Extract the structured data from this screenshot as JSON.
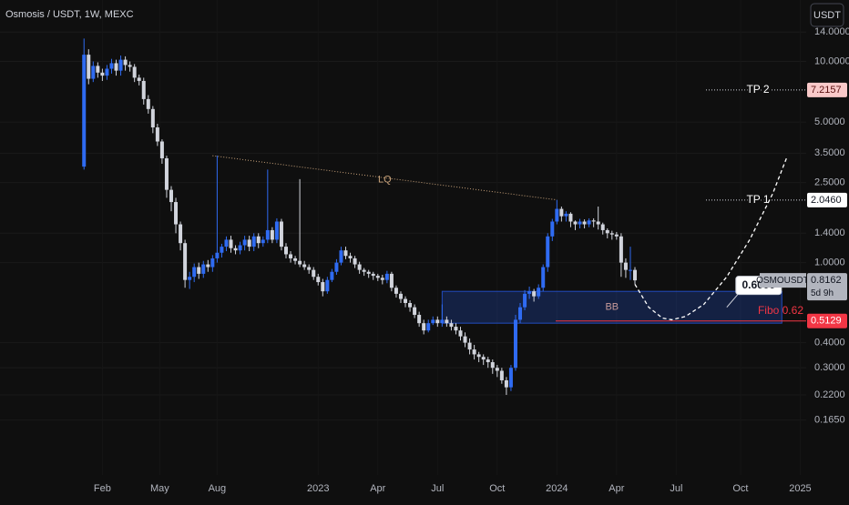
{
  "chart_data": {
    "type": "candlestick",
    "title": "Osmosis / USDT, 1W, MEXC",
    "currency_button": "USDT",
    "log_scale": true,
    "grid": true,
    "background": "#0f0f0f",
    "up_color": "#2f6bf2",
    "down_color": "#d1d4dc",
    "ylim": [
      0.088,
      20.2
    ],
    "xlim": [
      -18.3,
      157.3
    ],
    "yticks": [
      {
        "value": 14,
        "label": "14.0000"
      },
      {
        "value": 10,
        "label": "10.0000"
      },
      {
        "value": 5,
        "label": "5.0000"
      },
      {
        "value": 3.5,
        "label": "3.5000"
      },
      {
        "value": 2.5,
        "label": "2.5000"
      },
      {
        "value": 1.4,
        "label": "1.4000"
      },
      {
        "value": 1,
        "label": "1.0000"
      },
      {
        "value": 0.4,
        "label": "0.4000"
      },
      {
        "value": 0.3,
        "label": "0.3000"
      },
      {
        "value": 0.22,
        "label": "0.2200"
      },
      {
        "value": 0.165,
        "label": "0.1650"
      }
    ],
    "xticks": [
      {
        "value": 4,
        "label": "Feb"
      },
      {
        "value": 16.5,
        "label": "May"
      },
      {
        "value": 29,
        "label": "Aug"
      },
      {
        "value": 51,
        "label": "2023"
      },
      {
        "value": 64,
        "label": "Apr"
      },
      {
        "value": 77,
        "label": "Jul"
      },
      {
        "value": 90,
        "label": "Oct"
      },
      {
        "value": 103,
        "label": "2024"
      },
      {
        "value": 116,
        "label": "Apr"
      },
      {
        "value": 129,
        "label": "Jul"
      },
      {
        "value": 143,
        "label": "Oct"
      },
      {
        "value": 156,
        "label": "2025"
      }
    ],
    "series": {
      "name": "OSMOUSDT",
      "countdown": "5d 9h",
      "open": [
        3.0,
        10.8,
        8.2,
        9.5,
        8.8,
        8.5,
        9.2,
        9.8,
        9.0,
        10.2,
        9.6,
        9.4,
        8.3,
        8.0,
        6.5,
        5.8,
        4.7,
        4.0,
        3.3,
        2.3,
        2.0,
        1.55,
        1.25,
        0.82,
        0.85,
        0.95,
        0.88,
        0.98,
        0.95,
        1.05,
        1.12,
        1.2,
        1.3,
        1.18,
        1.15,
        1.22,
        1.3,
        1.2,
        1.35,
        1.25,
        1.3,
        1.45,
        1.3,
        1.6,
        1.2,
        1.1,
        1.05,
        1.02,
        0.98,
        0.95,
        0.92,
        0.85,
        0.8,
        0.72,
        0.82,
        0.9,
        1.0,
        1.15,
        1.08,
        1.05,
        0.98,
        0.92,
        0.9,
        0.88,
        0.86,
        0.84,
        0.82,
        0.88,
        0.75,
        0.7,
        0.66,
        0.63,
        0.6,
        0.55,
        0.5,
        0.46,
        0.5,
        0.52,
        0.5,
        0.52,
        0.5,
        0.48,
        0.46,
        0.43,
        0.4,
        0.37,
        0.35,
        0.34,
        0.33,
        0.32,
        0.3,
        0.29,
        0.26,
        0.24,
        0.3,
        0.52,
        0.6,
        0.7,
        0.72,
        0.68,
        0.75,
        0.95,
        1.35,
        1.6,
        1.85,
        1.7,
        1.75,
        1.6,
        1.55,
        1.6,
        1.55,
        1.62,
        1.6,
        1.55,
        1.45,
        1.4,
        1.38,
        1.35,
        1.0,
        0.92,
        0.92
      ],
      "high": [
        13.0,
        11.5,
        10.0,
        9.9,
        9.2,
        9.6,
        10.3,
        10.2,
        10.7,
        10.6,
        10.0,
        9.7,
        8.6,
        8.3,
        6.8,
        6.0,
        4.9,
        4.1,
        3.4,
        2.4,
        2.1,
        1.6,
        1.3,
        0.9,
        0.99,
        1.0,
        1.02,
        1.03,
        1.09,
        3.4,
        1.24,
        1.35,
        1.36,
        1.22,
        1.27,
        1.36,
        1.36,
        1.4,
        1.4,
        1.35,
        2.9,
        1.5,
        1.66,
        1.65,
        1.25,
        1.14,
        1.08,
        2.6,
        1.02,
        0.98,
        0.95,
        0.88,
        0.83,
        0.85,
        0.93,
        1.04,
        1.2,
        1.2,
        1.12,
        1.08,
        1.01,
        0.94,
        0.92,
        0.9,
        0.88,
        0.87,
        0.91,
        0.9,
        0.77,
        0.72,
        0.68,
        0.65,
        0.62,
        0.57,
        0.52,
        0.52,
        0.54,
        0.54,
        0.62,
        0.54,
        0.52,
        0.5,
        0.48,
        0.45,
        0.42,
        0.39,
        0.36,
        0.35,
        0.34,
        0.33,
        0.31,
        0.3,
        0.27,
        0.31,
        0.55,
        0.63,
        0.73,
        0.76,
        0.74,
        0.78,
        0.98,
        1.4,
        1.65,
        2.05,
        1.9,
        1.8,
        1.78,
        1.62,
        1.65,
        1.64,
        1.66,
        1.66,
        1.9,
        1.58,
        1.48,
        1.44,
        1.42,
        1.4,
        1.05,
        1.2,
        0.95
      ],
      "low": [
        2.9,
        7.7,
        7.9,
        8.3,
        8.0,
        8.1,
        8.7,
        8.5,
        8.5,
        9.0,
        8.9,
        7.9,
        7.6,
        6.1,
        5.5,
        4.4,
        3.8,
        3.1,
        2.1,
        1.8,
        1.4,
        1.15,
        0.75,
        0.74,
        0.8,
        0.83,
        0.84,
        0.9,
        0.9,
        1.0,
        1.06,
        1.14,
        1.12,
        1.1,
        1.1,
        1.15,
        1.14,
        1.14,
        1.18,
        1.2,
        1.25,
        1.25,
        1.25,
        1.15,
        1.05,
        1.0,
        0.98,
        0.95,
        0.92,
        0.88,
        0.82,
        0.77,
        0.68,
        0.7,
        0.8,
        0.87,
        0.97,
        1.04,
        1.0,
        0.94,
        0.88,
        0.86,
        0.84,
        0.82,
        0.81,
        0.78,
        0.79,
        0.72,
        0.67,
        0.63,
        0.6,
        0.57,
        0.53,
        0.48,
        0.44,
        0.45,
        0.49,
        0.48,
        0.48,
        0.48,
        0.46,
        0.44,
        0.41,
        0.38,
        0.35,
        0.33,
        0.32,
        0.31,
        0.3,
        0.28,
        0.27,
        0.25,
        0.22,
        0.23,
        0.29,
        0.5,
        0.58,
        0.66,
        0.64,
        0.66,
        0.72,
        0.9,
        1.28,
        1.55,
        1.6,
        1.6,
        1.5,
        1.45,
        1.48,
        1.48,
        1.5,
        1.5,
        1.46,
        1.38,
        1.32,
        1.3,
        1.3,
        0.85,
        0.84,
        0.82,
        0.78
      ],
      "close": [
        10.8,
        8.2,
        9.5,
        8.8,
        8.5,
        9.2,
        9.8,
        9.0,
        10.2,
        9.6,
        9.4,
        8.3,
        8.0,
        6.5,
        5.8,
        4.7,
        4.0,
        3.3,
        2.3,
        2.0,
        1.55,
        1.25,
        0.82,
        0.85,
        0.95,
        0.88,
        0.98,
        0.95,
        1.05,
        1.12,
        1.2,
        1.3,
        1.18,
        1.15,
        1.22,
        1.3,
        1.2,
        1.35,
        1.25,
        1.3,
        1.45,
        1.3,
        1.6,
        1.2,
        1.1,
        1.05,
        1.02,
        0.98,
        0.95,
        0.92,
        0.85,
        0.8,
        0.72,
        0.82,
        0.9,
        1.0,
        1.15,
        1.08,
        1.05,
        0.98,
        0.92,
        0.9,
        0.88,
        0.86,
        0.84,
        0.82,
        0.88,
        0.75,
        0.7,
        0.66,
        0.63,
        0.6,
        0.55,
        0.5,
        0.46,
        0.5,
        0.52,
        0.5,
        0.52,
        0.5,
        0.48,
        0.46,
        0.43,
        0.4,
        0.37,
        0.35,
        0.34,
        0.33,
        0.32,
        0.3,
        0.29,
        0.26,
        0.24,
        0.3,
        0.52,
        0.6,
        0.7,
        0.72,
        0.68,
        0.75,
        0.95,
        1.35,
        1.6,
        1.85,
        1.7,
        1.75,
        1.6,
        1.55,
        1.6,
        1.55,
        1.62,
        1.6,
        1.55,
        1.45,
        1.4,
        1.38,
        1.35,
        1.0,
        0.92,
        0.92,
        0.8162
      ]
    },
    "lq_line": {
      "label": "LQ",
      "x": [
        28,
        103
      ],
      "y": [
        3.4,
        2.05
      ],
      "color": "#c8a27a"
    },
    "targets": [
      {
        "name": "TP 2",
        "price": 7.2157,
        "color": "#f9c9c9",
        "text_color": "#5a1010"
      },
      {
        "name": "TP 1",
        "price": {
          "value": 2.046,
          "label": "2.0460"
        },
        "color": "#ffffff",
        "text_color": "#131722"
      }
    ],
    "zone": {
      "label": "BB",
      "x": [
        78,
        152
      ],
      "y": [
        0.5,
        0.72
      ],
      "color": "#2962ff",
      "text_color": "#c79a9a"
    },
    "fibo": {
      "label": "Fibo 0.62",
      "price": 0.5129,
      "color": "#f23645"
    },
    "projection": {
      "x": [
        120,
        123,
        126,
        128,
        131,
        135,
        140,
        145,
        150,
        153
      ],
      "y": [
        0.78,
        0.6,
        0.53,
        0.52,
        0.54,
        0.62,
        0.85,
        1.3,
        2.2,
        3.3
      ]
    },
    "callout": {
      "label": "0.6000",
      "x": 140,
      "y": 0.6
    }
  }
}
